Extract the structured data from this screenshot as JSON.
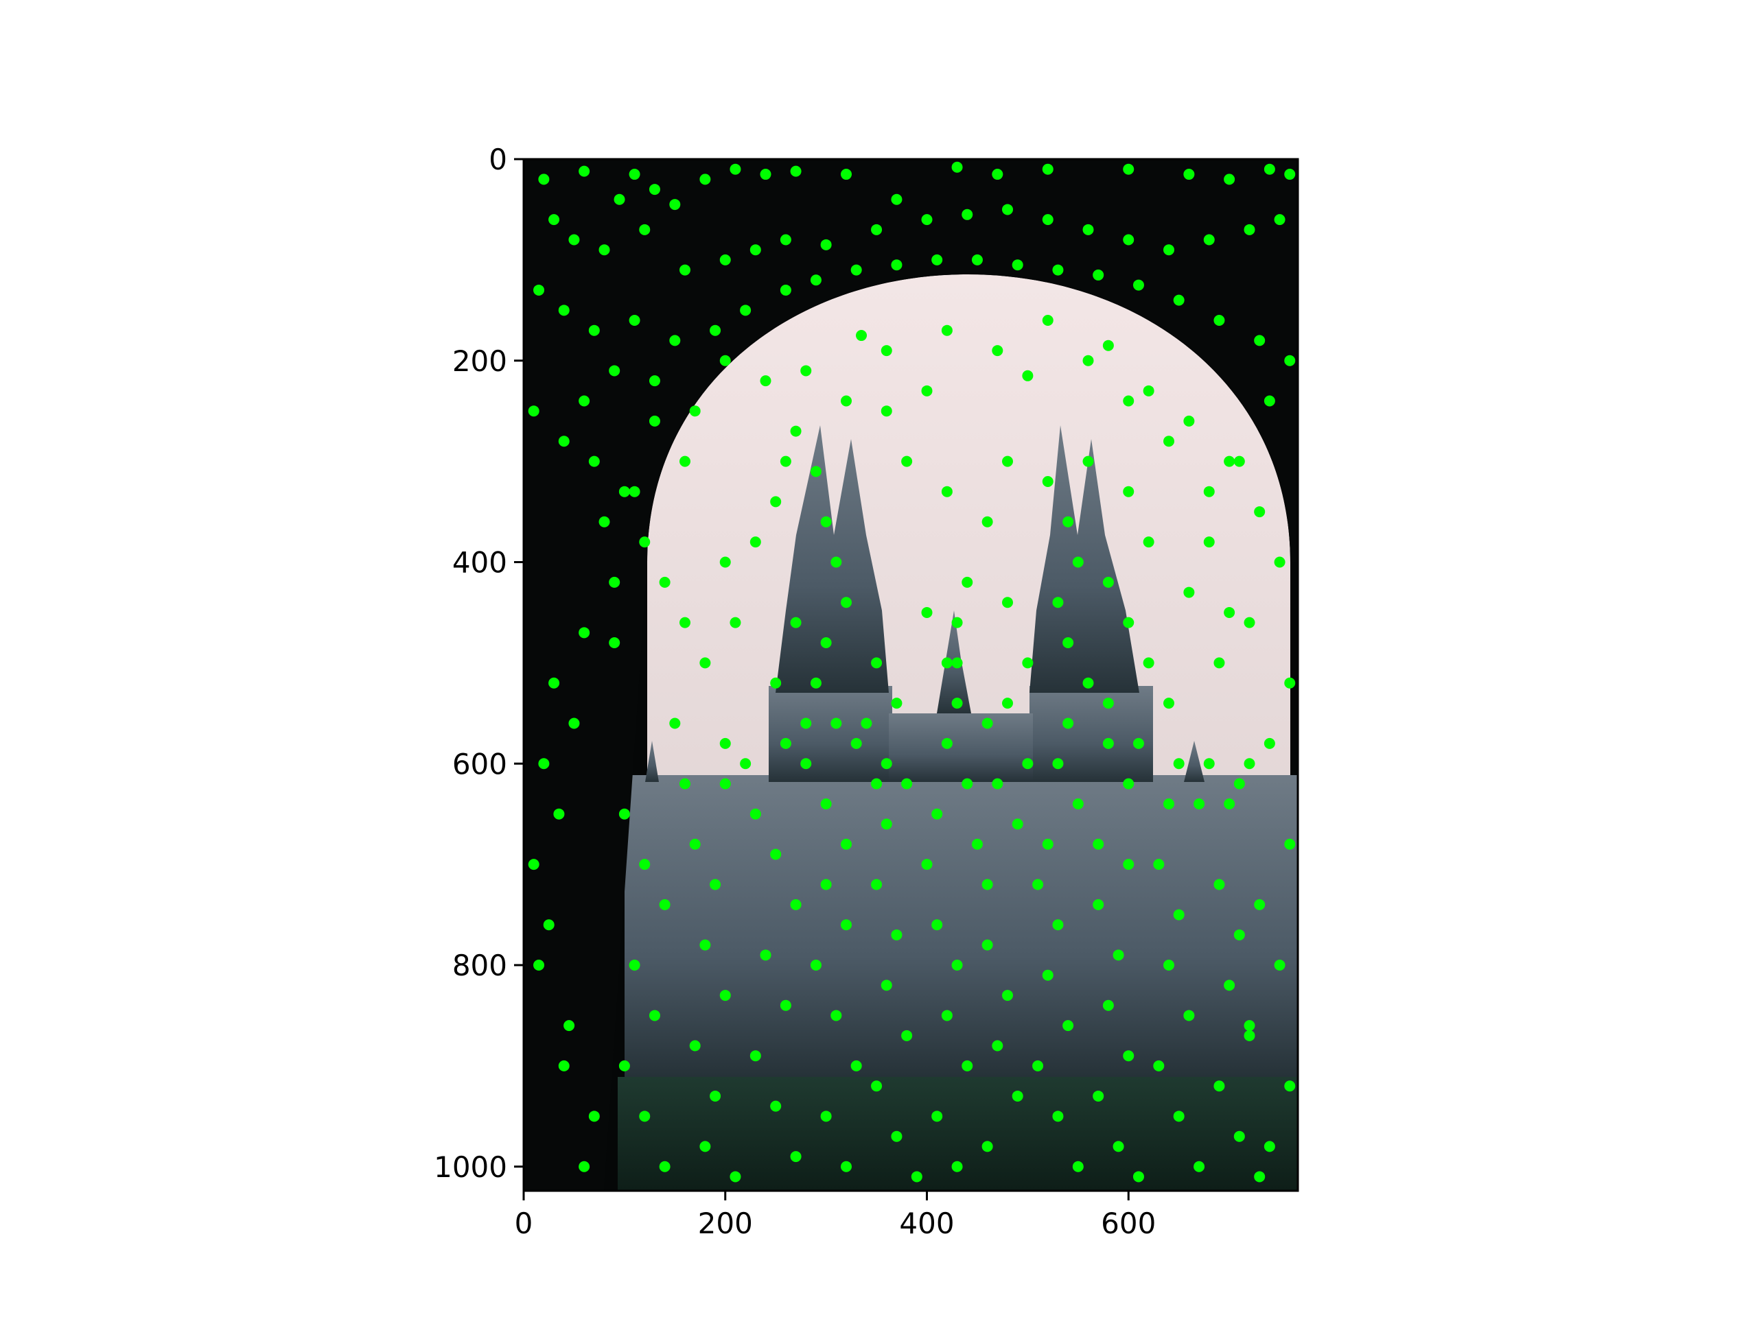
{
  "chart_data": {
    "type": "scatter",
    "title": "",
    "xlabel": "",
    "ylabel": "",
    "xlim": [
      0,
      768
    ],
    "ylim": [
      1024,
      0
    ],
    "y_axis_inverted": true,
    "grid": false,
    "legend": "none",
    "background_image": "photo of a gothic college building with twin spires seen through a dark stone archway",
    "x_ticks": [
      {
        "value": 0,
        "label": "0"
      },
      {
        "value": 200,
        "label": "200"
      },
      {
        "value": 400,
        "label": "400"
      },
      {
        "value": 600,
        "label": "600"
      }
    ],
    "y_ticks": [
      {
        "value": 0,
        "label": "0"
      },
      {
        "value": 200,
        "label": "200"
      },
      {
        "value": 400,
        "label": "400"
      },
      {
        "value": 600,
        "label": "600"
      },
      {
        "value": 800,
        "label": "800"
      },
      {
        "value": 1000,
        "label": "1000"
      }
    ],
    "marker_color": "#00ff00",
    "series": [
      {
        "points": [
          [
            20,
            20
          ],
          [
            60,
            12
          ],
          [
            95,
            40
          ],
          [
            110,
            15
          ],
          [
            130,
            30
          ],
          [
            150,
            45
          ],
          [
            180,
            20
          ],
          [
            210,
            10
          ],
          [
            240,
            15
          ],
          [
            270,
            12
          ],
          [
            320,
            15
          ],
          [
            370,
            40
          ],
          [
            430,
            8
          ],
          [
            470,
            15
          ],
          [
            520,
            10
          ],
          [
            600,
            10
          ],
          [
            660,
            15
          ],
          [
            700,
            20
          ],
          [
            740,
            10
          ],
          [
            760,
            15
          ],
          [
            30,
            60
          ],
          [
            50,
            80
          ],
          [
            80,
            90
          ],
          [
            120,
            70
          ],
          [
            160,
            110
          ],
          [
            200,
            100
          ],
          [
            230,
            90
          ],
          [
            260,
            80
          ],
          [
            300,
            85
          ],
          [
            350,
            70
          ],
          [
            400,
            60
          ],
          [
            440,
            55
          ],
          [
            480,
            50
          ],
          [
            520,
            60
          ],
          [
            560,
            70
          ],
          [
            600,
            80
          ],
          [
            640,
            90
          ],
          [
            680,
            80
          ],
          [
            720,
            70
          ],
          [
            750,
            60
          ],
          [
            15,
            130
          ],
          [
            40,
            150
          ],
          [
            70,
            170
          ],
          [
            110,
            160
          ],
          [
            150,
            180
          ],
          [
            190,
            170
          ],
          [
            220,
            150
          ],
          [
            260,
            130
          ],
          [
            290,
            120
          ],
          [
            330,
            110
          ],
          [
            370,
            105
          ],
          [
            410,
            100
          ],
          [
            450,
            100
          ],
          [
            490,
            105
          ],
          [
            530,
            110
          ],
          [
            570,
            115
          ],
          [
            610,
            125
          ],
          [
            650,
            140
          ],
          [
            690,
            160
          ],
          [
            730,
            180
          ],
          [
            760,
            200
          ],
          [
            10,
            250
          ],
          [
            40,
            280
          ],
          [
            70,
            300
          ],
          [
            100,
            330
          ],
          [
            130,
            260
          ],
          [
            160,
            300
          ],
          [
            120,
            380
          ],
          [
            90,
            420
          ],
          [
            60,
            470
          ],
          [
            30,
            520
          ],
          [
            20,
            600
          ],
          [
            10,
            700
          ],
          [
            15,
            800
          ],
          [
            40,
            900
          ],
          [
            60,
            1000
          ],
          [
            740,
            240
          ],
          [
            710,
            300
          ],
          [
            730,
            350
          ],
          [
            750,
            400
          ],
          [
            720,
            460
          ],
          [
            760,
            520
          ],
          [
            740,
            580
          ],
          [
            710,
            620
          ],
          [
            760,
            680
          ],
          [
            730,
            740
          ],
          [
            750,
            800
          ],
          [
            720,
            860
          ],
          [
            760,
            920
          ],
          [
            740,
            980
          ],
          [
            240,
            220
          ],
          [
            280,
            210
          ],
          [
            320,
            240
          ],
          [
            360,
            190
          ],
          [
            420,
            170
          ],
          [
            470,
            190
          ],
          [
            520,
            160
          ],
          [
            560,
            200
          ],
          [
            600,
            240
          ],
          [
            640,
            280
          ],
          [
            680,
            330
          ],
          [
            260,
            300
          ],
          [
            230,
            380
          ],
          [
            210,
            460
          ],
          [
            250,
            520
          ],
          [
            200,
            580
          ],
          [
            380,
            300
          ],
          [
            420,
            330
          ],
          [
            460,
            360
          ],
          [
            440,
            420
          ],
          [
            400,
            450
          ],
          [
            480,
            440
          ],
          [
            420,
            500
          ],
          [
            460,
            560
          ],
          [
            660,
            430
          ],
          [
            690,
            500
          ],
          [
            640,
            540
          ],
          [
            620,
            380
          ],
          [
            600,
            330
          ],
          [
            680,
            380
          ],
          [
            700,
            450
          ],
          [
            290,
            310
          ],
          [
            300,
            360
          ],
          [
            310,
            400
          ],
          [
            320,
            440
          ],
          [
            300,
            480
          ],
          [
            290,
            520
          ],
          [
            310,
            560
          ],
          [
            280,
            600
          ],
          [
            300,
            640
          ],
          [
            320,
            680
          ],
          [
            520,
            320
          ],
          [
            540,
            360
          ],
          [
            550,
            400
          ],
          [
            530,
            440
          ],
          [
            540,
            480
          ],
          [
            560,
            520
          ],
          [
            540,
            560
          ],
          [
            530,
            600
          ],
          [
            550,
            640
          ],
          [
            520,
            680
          ],
          [
            430,
            460
          ],
          [
            430,
            500
          ],
          [
            430,
            540
          ],
          [
            420,
            580
          ],
          [
            440,
            620
          ],
          [
            410,
            650
          ],
          [
            450,
            680
          ],
          [
            380,
            620
          ],
          [
            360,
            660
          ],
          [
            470,
            620
          ],
          [
            490,
            660
          ],
          [
            400,
            700
          ],
          [
            460,
            720
          ],
          [
            100,
            650
          ],
          [
            120,
            700
          ],
          [
            140,
            740
          ],
          [
            110,
            800
          ],
          [
            130,
            850
          ],
          [
            100,
            900
          ],
          [
            120,
            950
          ],
          [
            140,
            1000
          ],
          [
            170,
            680
          ],
          [
            190,
            720
          ],
          [
            180,
            780
          ],
          [
            200,
            830
          ],
          [
            170,
            880
          ],
          [
            190,
            930
          ],
          [
            180,
            980
          ],
          [
            210,
            1010
          ],
          [
            230,
            650
          ],
          [
            250,
            690
          ],
          [
            270,
            740
          ],
          [
            240,
            790
          ],
          [
            260,
            840
          ],
          [
            230,
            890
          ],
          [
            250,
            940
          ],
          [
            270,
            990
          ],
          [
            300,
            720
          ],
          [
            320,
            760
          ],
          [
            290,
            800
          ],
          [
            310,
            850
          ],
          [
            330,
            900
          ],
          [
            300,
            950
          ],
          [
            320,
            1000
          ],
          [
            350,
            720
          ],
          [
            370,
            770
          ],
          [
            360,
            820
          ],
          [
            380,
            870
          ],
          [
            350,
            920
          ],
          [
            370,
            970
          ],
          [
            390,
            1010
          ],
          [
            410,
            760
          ],
          [
            430,
            800
          ],
          [
            420,
            850
          ],
          [
            440,
            900
          ],
          [
            410,
            950
          ],
          [
            430,
            1000
          ],
          [
            460,
            780
          ],
          [
            480,
            830
          ],
          [
            470,
            880
          ],
          [
            490,
            930
          ],
          [
            460,
            980
          ],
          [
            510,
            720
          ],
          [
            530,
            760
          ],
          [
            520,
            810
          ],
          [
            540,
            860
          ],
          [
            510,
            900
          ],
          [
            530,
            950
          ],
          [
            550,
            1000
          ],
          [
            570,
            740
          ],
          [
            590,
            790
          ],
          [
            580,
            840
          ],
          [
            600,
            890
          ],
          [
            570,
            930
          ],
          [
            590,
            980
          ],
          [
            610,
            1010
          ],
          [
            630,
            700
          ],
          [
            650,
            750
          ],
          [
            640,
            800
          ],
          [
            660,
            850
          ],
          [
            630,
            900
          ],
          [
            650,
            950
          ],
          [
            670,
            1000
          ],
          [
            690,
            720
          ],
          [
            710,
            770
          ],
          [
            700,
            820
          ],
          [
            720,
            870
          ],
          [
            690,
            920
          ],
          [
            710,
            970
          ],
          [
            730,
            1010
          ],
          [
            150,
            560
          ],
          [
            160,
            620
          ],
          [
            200,
            620
          ],
          [
            220,
            600
          ],
          [
            260,
            580
          ],
          [
            280,
            560
          ],
          [
            340,
            560
          ],
          [
            360,
            600
          ],
          [
            500,
            600
          ],
          [
            580,
            580
          ],
          [
            600,
            620
          ],
          [
            640,
            640
          ],
          [
            680,
            600
          ],
          [
            700,
            640
          ],
          [
            720,
            600
          ],
          [
            90,
            210
          ],
          [
            60,
            240
          ],
          [
            130,
            220
          ],
          [
            170,
            250
          ],
          [
            200,
            200
          ],
          [
            110,
            330
          ],
          [
            80,
            360
          ],
          [
            140,
            420
          ],
          [
            160,
            460
          ],
          [
            90,
            480
          ],
          [
            50,
            560
          ],
          [
            35,
            650
          ],
          [
            25,
            760
          ],
          [
            45,
            860
          ],
          [
            70,
            950
          ],
          [
            335,
            175
          ],
          [
            400,
            230
          ],
          [
            500,
            215
          ],
          [
            580,
            185
          ],
          [
            620,
            230
          ],
          [
            660,
            260
          ],
          [
            700,
            300
          ],
          [
            560,
            300
          ],
          [
            480,
            300
          ],
          [
            360,
            250
          ],
          [
            270,
            270
          ],
          [
            250,
            340
          ],
          [
            200,
            400
          ],
          [
            180,
            500
          ],
          [
            270,
            460
          ],
          [
            580,
            420
          ],
          [
            600,
            460
          ],
          [
            620,
            500
          ],
          [
            580,
            540
          ],
          [
            610,
            580
          ],
          [
            650,
            600
          ],
          [
            670,
            640
          ],
          [
            570,
            680
          ],
          [
            600,
            700
          ],
          [
            480,
            540
          ],
          [
            500,
            500
          ],
          [
            350,
            500
          ],
          [
            370,
            540
          ],
          [
            330,
            580
          ],
          [
            350,
            620
          ]
        ]
      }
    ]
  }
}
